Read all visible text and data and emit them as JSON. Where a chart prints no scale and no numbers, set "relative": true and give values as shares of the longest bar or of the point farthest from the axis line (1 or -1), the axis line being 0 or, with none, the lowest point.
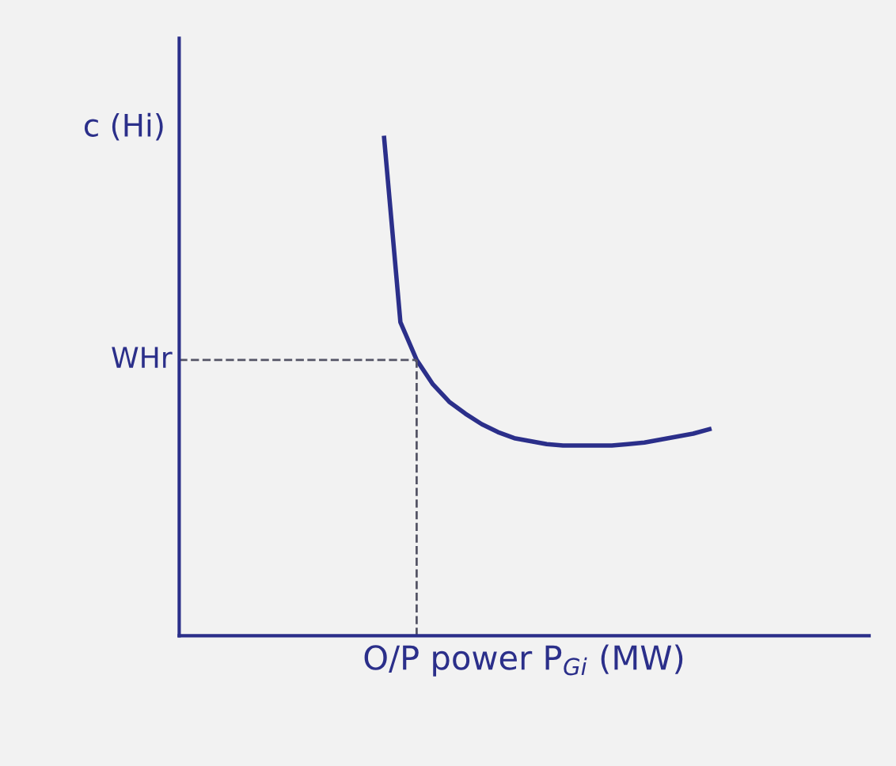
{
  "chart_data": {
    "type": "line",
    "relative": true,
    "xlabel": "O/P power P$_{Gi}$ (MW)",
    "annotations": [
      "c (Hi)",
      "WHr"
    ],
    "categories": [
      null,
      null,
      null,
      null,
      null,
      null,
      null,
      null,
      null,
      null,
      null,
      null,
      null,
      null,
      null,
      null,
      null,
      null,
      null,
      null,
      null
    ],
    "series": [
      {
        "color": "#2b2f8a",
        "values": [
          1.0,
          0.63,
          0.554,
          0.505,
          0.47,
          0.446,
          0.425,
          0.409,
          0.397,
          0.391,
          0.385,
          0.382,
          0.382,
          0.382,
          0.382,
          0.385,
          0.388,
          0.394,
          0.4,
          0.406,
          0.415
        ]
      }
    ],
    "grid": false,
    "marker": "none",
    "line_style": "solid"
  }
}
